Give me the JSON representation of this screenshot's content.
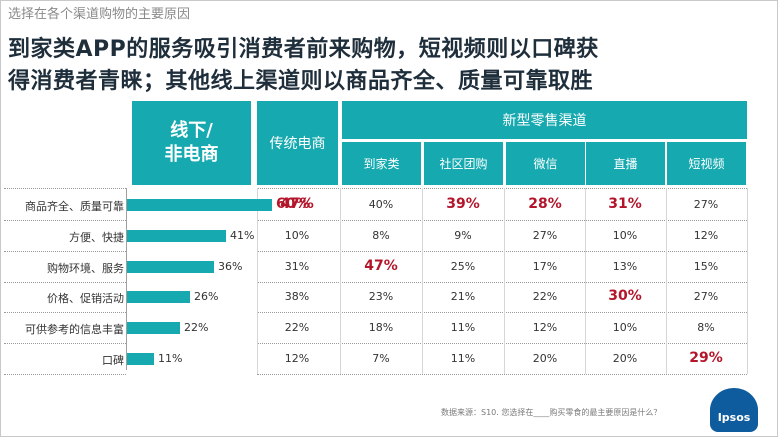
{
  "subtitle": "选择在各个渠道购物的主要原因",
  "title": {
    "line1": "到家类APP的服务吸引消费者前来购物，短视频则以口碑获",
    "line2": "得消费者青睐；其他线上渠道则以商品齐全、质量可靠取胜"
  },
  "headers": {
    "offline_line1": "线下/",
    "offline_line2": "非电商",
    "traditional": "传统电商",
    "new_retail": "新型零售渠道",
    "sub": [
      "到家类",
      "社区团购",
      "微信",
      "直播",
      "短视频"
    ]
  },
  "source": "数据来源：S10. 您选择在____购买零食的最主要原因是什么？",
  "logo": "Ipsos",
  "colors": {
    "accent": "#16aab0",
    "highlight": "#b3162b",
    "title": "#1f2e3b"
  },
  "chart_data": {
    "type": "table",
    "categories": [
      "商品齐全、质量可靠",
      "方便、快捷",
      "购物环境、服务",
      "价格、促销活动",
      "可供参考的信息丰富",
      "口碑"
    ],
    "columns": [
      "线下/非电商",
      "传统电商",
      "到家类",
      "社区团购",
      "微信",
      "直播",
      "短视频"
    ],
    "bar_series": {
      "name": "线下/非电商",
      "values": [
        60,
        41,
        36,
        26,
        22,
        11
      ],
      "labels": [
        "60%",
        "41%",
        "36%",
        "26%",
        "22%",
        "11%"
      ],
      "type": "bar"
    },
    "table": [
      [
        "47%",
        "40%",
        "39%",
        "28%",
        "31%",
        "27%"
      ],
      [
        "10%",
        "8%",
        "9%",
        "27%",
        "10%",
        "12%"
      ],
      [
        "31%",
        "47%",
        "25%",
        "17%",
        "13%",
        "15%"
      ],
      [
        "38%",
        "23%",
        "21%",
        "22%",
        "30%",
        "27%"
      ],
      [
        "22%",
        "18%",
        "11%",
        "12%",
        "10%",
        "8%"
      ],
      [
        "12%",
        "7%",
        "11%",
        "20%",
        "20%",
        "29%"
      ]
    ],
    "highlights": [
      [
        0,
        -1
      ],
      [
        0,
        0
      ],
      [
        0,
        2
      ],
      [
        0,
        3
      ],
      [
        0,
        4
      ],
      [
        2,
        1
      ],
      [
        3,
        4
      ],
      [
        5,
        5
      ]
    ]
  }
}
